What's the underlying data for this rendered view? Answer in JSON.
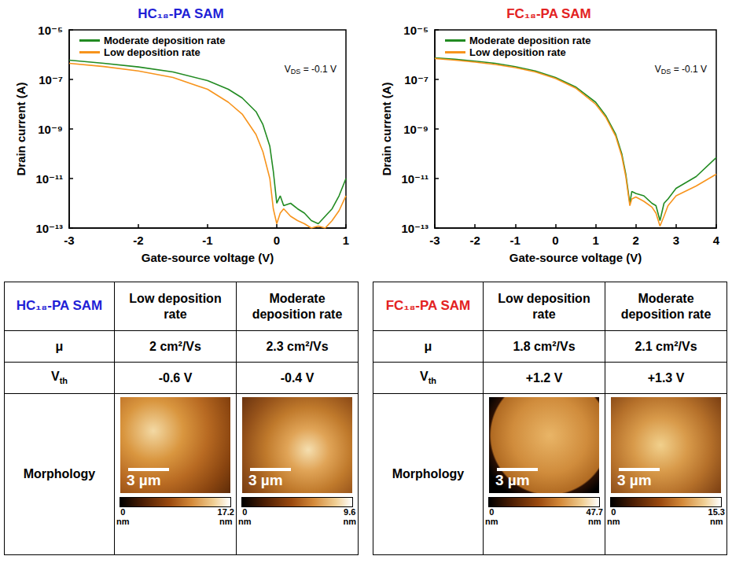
{
  "chart_data": [
    {
      "type": "line",
      "title": "HC₁₈-PA SAM",
      "x_label": "Gate-source voltage (V)",
      "y_label": "Drain current (A)",
      "xlim": [
        -3,
        1
      ],
      "xticks": [
        -3,
        -2,
        -1,
        0,
        1
      ],
      "ylim": [
        1e-13,
        1e-05
      ],
      "yticks": [
        {
          "value": 1e-13,
          "label": "10⁻¹³"
        },
        {
          "value": 1e-11,
          "label": "10⁻¹¹"
        },
        {
          "value": 1e-09,
          "label": "10⁻⁹"
        },
        {
          "value": 1e-07,
          "label": "10⁻⁷"
        },
        {
          "value": 1e-05,
          "label": "10⁻⁵"
        }
      ],
      "log": "y",
      "legend": "upper left",
      "annotation": {
        "base": "V",
        "sub": "DS",
        "text": " = -0.1 V"
      },
      "x": [
        -3,
        -2.5,
        -2,
        -1.5,
        -1,
        -0.7,
        -0.5,
        -0.3,
        -0.2,
        -0.1,
        -0.05,
        0,
        0.05,
        0.1,
        0.2,
        0.3,
        0.4,
        0.5,
        0.6,
        0.7,
        0.8,
        0.9,
        1
      ],
      "series": [
        {
          "name": "Moderate deposition rate",
          "color": "#228b22",
          "values": [
            6e-07,
            4.5e-07,
            3.2e-07,
            2e-07,
            9e-08,
            4e-08,
            1.8e-08,
            5e-09,
            1.5e-09,
            2e-10,
            2e-11,
            1e-12,
            2e-12,
            8e-13,
            1e-12,
            6e-13,
            4e-13,
            2e-13,
            1.5e-13,
            3e-13,
            6e-13,
            2e-12,
            1e-11
          ]
        },
        {
          "name": "Low deposition rate",
          "color": "#f7941d",
          "values": [
            4.5e-07,
            3.3e-07,
            2.2e-07,
            1.2e-07,
            4e-08,
            1.2e-08,
            4e-09,
            6e-10,
            1.2e-10,
            1e-11,
            6e-13,
            1.5e-13,
            4e-13,
            6e-13,
            3e-13,
            2e-13,
            1.5e-13,
            1e-13,
            1.2e-13,
            1e-13,
            2e-13,
            5e-13,
            2e-12
          ]
        }
      ]
    },
    {
      "type": "line",
      "title": "FC₁₈-PA SAM",
      "x_label": "Gate-source voltage (V)",
      "y_label": "Drain current (A)",
      "xlim": [
        -3,
        4
      ],
      "xticks": [
        -3,
        -2,
        -1,
        0,
        1,
        2,
        3,
        4
      ],
      "ylim": [
        1e-13,
        1e-05
      ],
      "yticks": [
        {
          "value": 1e-13,
          "label": "10⁻¹³"
        },
        {
          "value": 1e-11,
          "label": "10⁻¹¹"
        },
        {
          "value": 1e-09,
          "label": "10⁻⁹"
        },
        {
          "value": 1e-07,
          "label": "10⁻⁷"
        },
        {
          "value": 1e-05,
          "label": "10⁻⁵"
        }
      ],
      "log": "y",
      "legend": "upper left",
      "annotation": {
        "base": "V",
        "sub": "DS",
        "text": " = -0.1 V"
      },
      "x": [
        -3,
        -2.5,
        -2,
        -1.5,
        -1,
        -0.5,
        0,
        0.5,
        1,
        1.25,
        1.5,
        1.65,
        1.75,
        1.85,
        1.9,
        2,
        2.2,
        2.4,
        2.5,
        2.6,
        2.7,
        2.8,
        3,
        3.5,
        4
      ],
      "series": [
        {
          "name": "Moderate deposition rate",
          "color": "#228b22",
          "values": [
            7.5e-07,
            6.5e-07,
            5.5e-07,
            4.5e-07,
            3.3e-07,
            2.2e-07,
            1.2e-07,
            5e-08,
            1.2e-08,
            3.5e-09,
            6e-10,
            1e-10,
            1.5e-11,
            1e-12,
            3e-12,
            2.5e-12,
            2e-12,
            1e-12,
            8e-13,
            2e-13,
            1e-12,
            1.5e-12,
            4e-12,
            1.2e-11,
            7e-11
          ]
        },
        {
          "name": "Low deposition rate",
          "color": "#f7941d",
          "values": [
            7e-07,
            6e-07,
            5e-07,
            4e-07,
            3e-07,
            2e-07,
            1.1e-07,
            4.5e-08,
            1e-08,
            3e-09,
            5e-10,
            8e-11,
            1.2e-11,
            8e-13,
            1.5e-12,
            1.8e-12,
            1.2e-12,
            7e-13,
            4e-13,
            1.2e-13,
            3e-13,
            8e-13,
            2e-12,
            5e-12,
            1.5e-11
          ]
        }
      ]
    }
  ],
  "tables": [
    {
      "title": "HC₁₈-PA SAM",
      "columns": [
        "Low deposition rate",
        "Moderate deposition rate"
      ],
      "rows": [
        {
          "label": "μ",
          "values": [
            "2 cm²/Vs",
            "2.3 cm²/Vs"
          ]
        },
        {
          "label": {
            "base": "V",
            "sub": "th"
          },
          "values": [
            "-0.6 V",
            "-0.4 V"
          ]
        },
        {
          "label": "Morphology",
          "images": [
            {
              "scale_bar": "3 µm",
              "colorbar": {
                "range": [
                  0,
                  17.2
                ],
                "unit": "nm"
              }
            },
            {
              "scale_bar": "3 µm",
              "colorbar": {
                "range": [
                  0,
                  9.6
                ],
                "unit": "nm"
              }
            }
          ]
        }
      ]
    },
    {
      "title": "FC₁₈-PA SAM",
      "columns": [
        "Low deposition rate",
        "Moderate deposition rate"
      ],
      "rows": [
        {
          "label": "μ",
          "values": [
            "1.8 cm²/Vs",
            "2.1 cm²/Vs"
          ]
        },
        {
          "label": {
            "base": "V",
            "sub": "th"
          },
          "values": [
            "+1.2 V",
            "+1.3 V"
          ]
        },
        {
          "label": "Morphology",
          "images": [
            {
              "scale_bar": "3 µm",
              "colorbar": {
                "range": [
                  0,
                  47.7
                ],
                "unit": "nm"
              }
            },
            {
              "scale_bar": "3 µm",
              "colorbar": {
                "range": [
                  0,
                  15.3
                ],
                "unit": "nm"
              }
            }
          ]
        }
      ]
    }
  ]
}
